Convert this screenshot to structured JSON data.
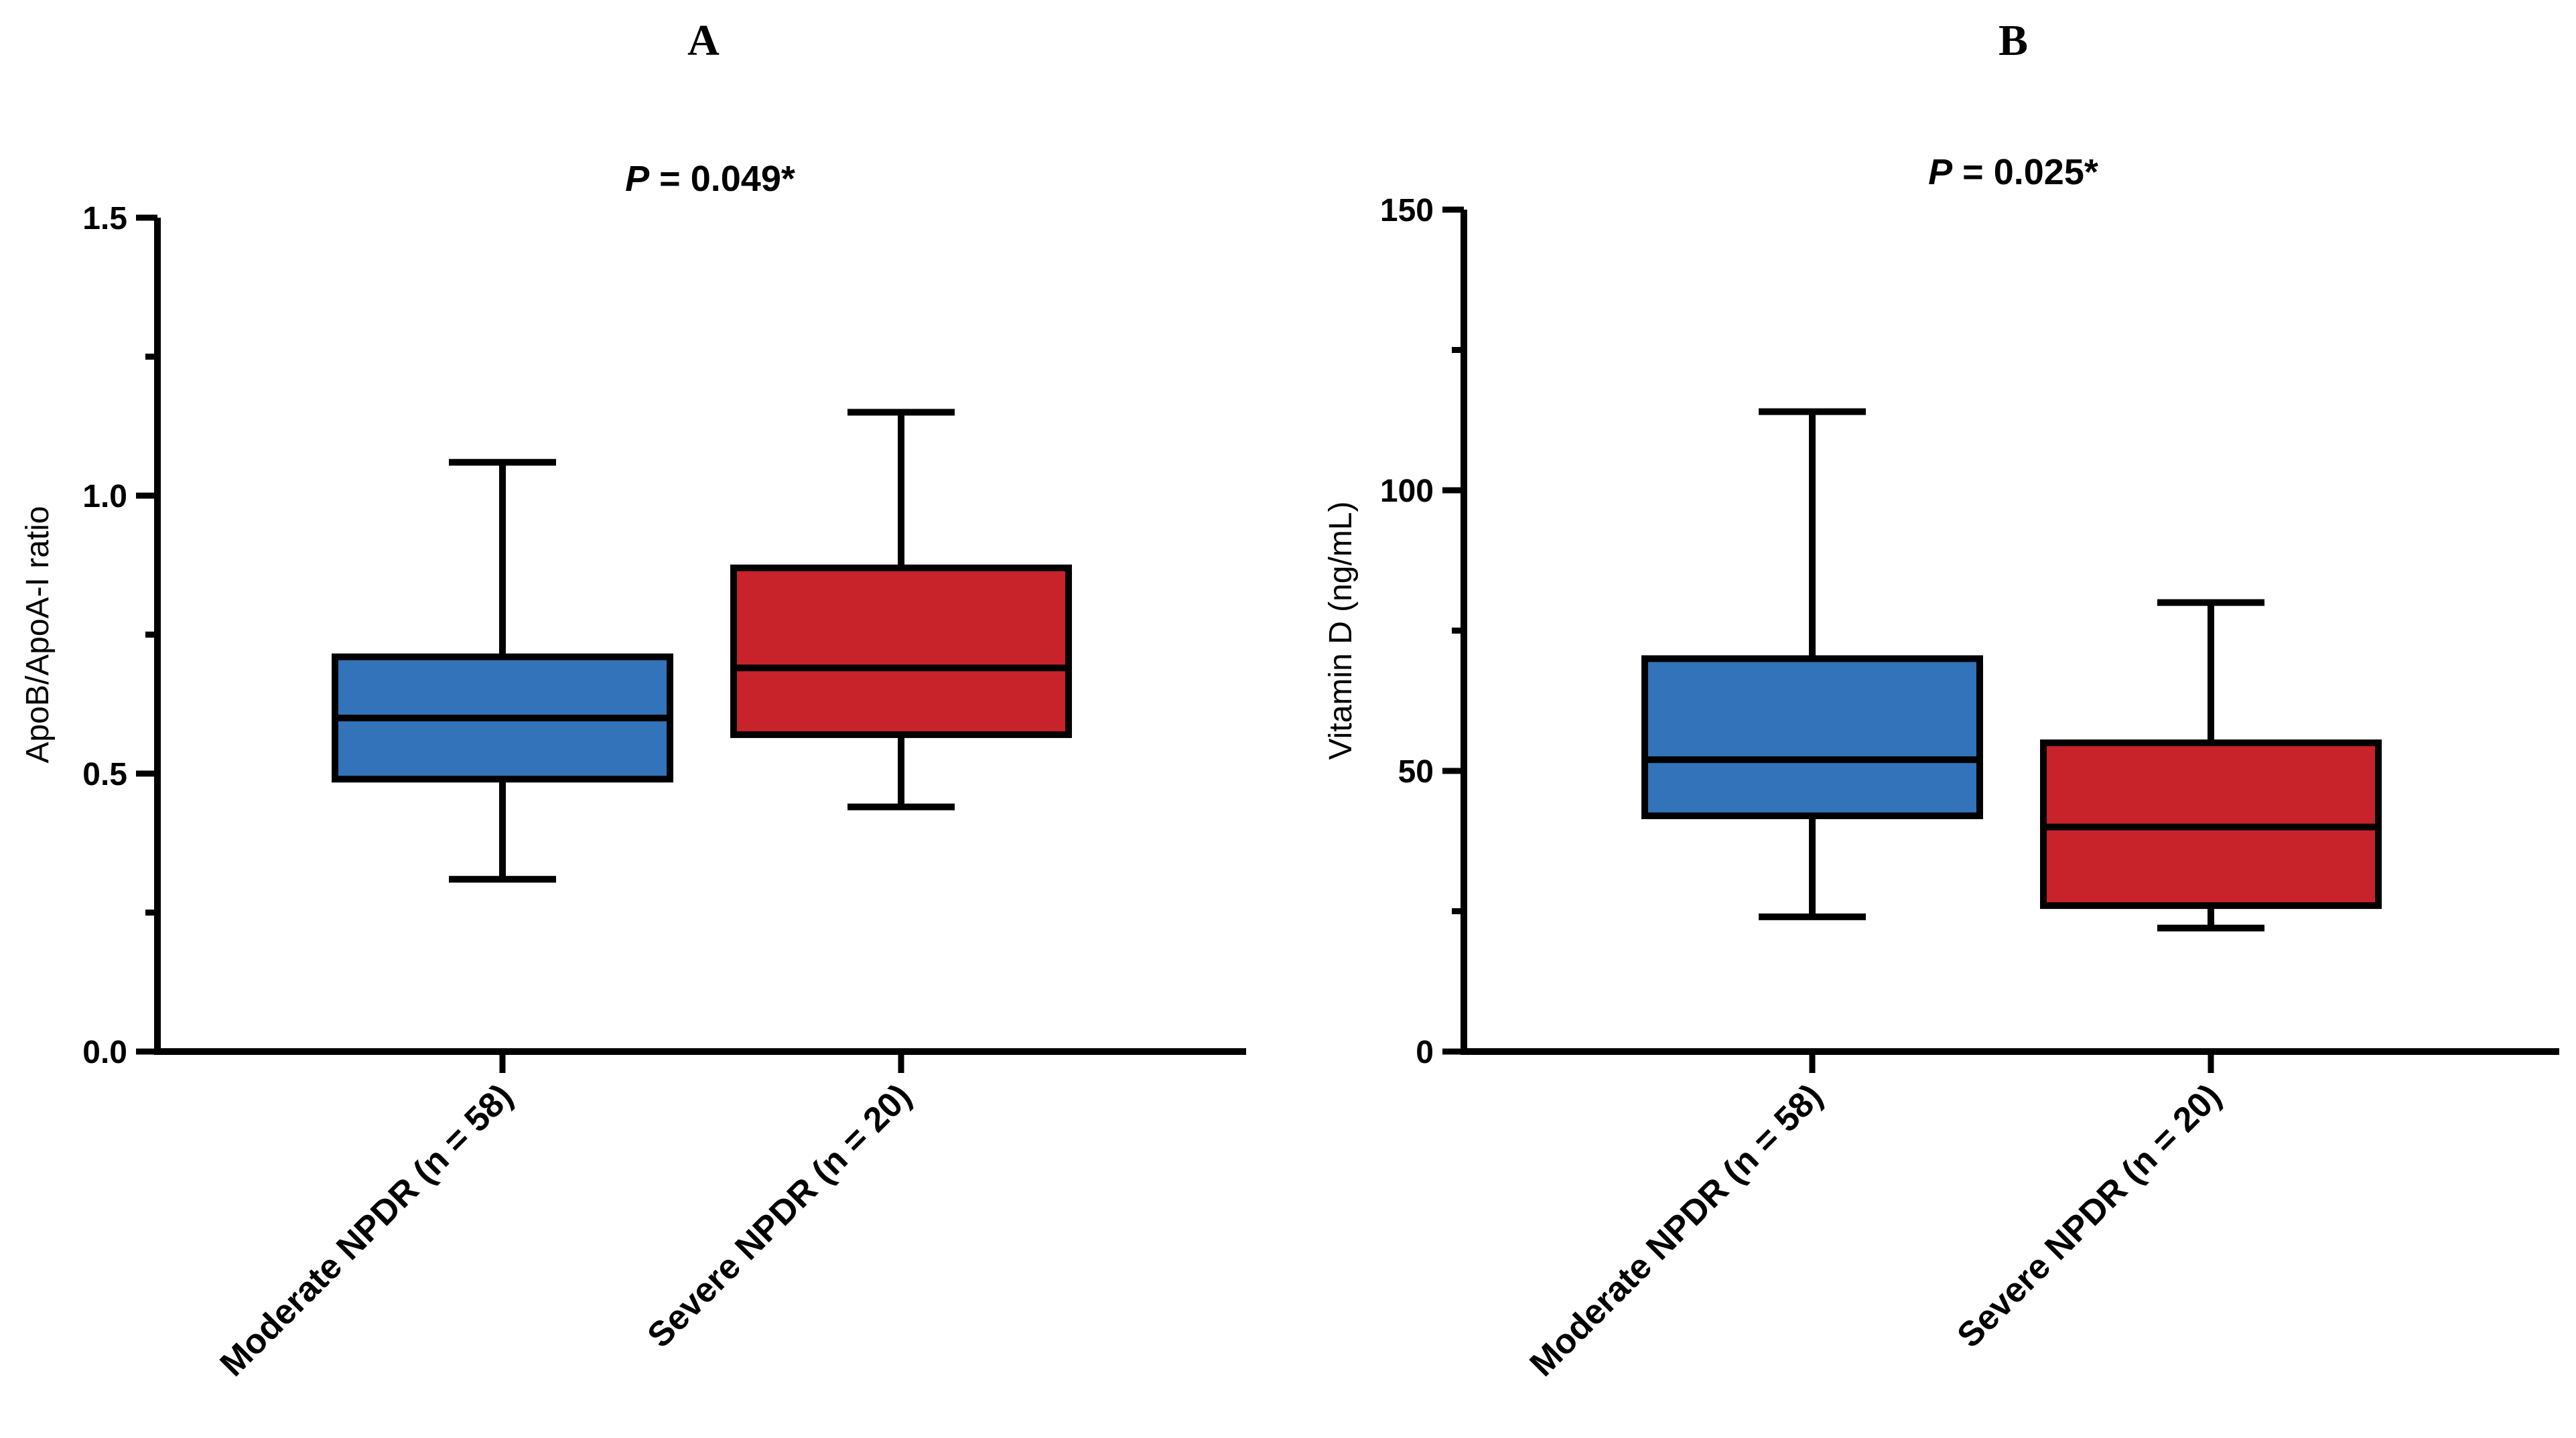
{
  "chart_data": [
    {
      "type": "boxplot",
      "panel": "A",
      "title": "P = 0.049*",
      "title_p": "P",
      "title_rest": " = 0.049*",
      "ylabel": "ApoB/ApoA-I ratio",
      "xlabel": "",
      "ylim": [
        0,
        1.5
      ],
      "yticks": [
        0.0,
        0.5,
        1.0,
        1.5
      ],
      "ytick_labels": [
        "0.0",
        "0.5",
        "1.0",
        "1.5"
      ],
      "minor_step": 0.25,
      "categories": [
        "Moderate NPDR (n = 58)",
        "Severe NPDR (n = 20)"
      ],
      "boxes": [
        {
          "name": "Moderate NPDR (n = 58)",
          "min": 0.31,
          "q1": 0.49,
          "median": 0.6,
          "q3": 0.71,
          "max": 1.06,
          "color": "#3273B9"
        },
        {
          "name": "Severe NPDR (n = 20)",
          "min": 0.44,
          "q1": 0.57,
          "median": 0.69,
          "q3": 0.87,
          "max": 1.15,
          "color": "#C8232B"
        }
      ]
    },
    {
      "type": "boxplot",
      "panel": "B",
      "title": "P = 0.025*",
      "title_p": "P",
      "title_rest": " = 0.025*",
      "ylabel": "Vitamin D (ng/mL)",
      "xlabel": "",
      "ylim": [
        0,
        150
      ],
      "yticks": [
        0,
        50,
        100,
        150
      ],
      "ytick_labels": [
        "0",
        "50",
        "100",
        "150"
      ],
      "minor_step": 25,
      "categories": [
        "Moderate NPDR (n = 58)",
        "Severe NPDR (n = 20)"
      ],
      "boxes": [
        {
          "name": "Moderate NPDR (n = 58)",
          "min": 24,
          "q1": 42,
          "median": 52,
          "q3": 70,
          "max": 114,
          "color": "#3273B9"
        },
        {
          "name": "Severe NPDR (n = 20)",
          "min": 22,
          "q1": 26,
          "median": 40,
          "q3": 55,
          "max": 80,
          "color": "#C8232B"
        }
      ]
    }
  ]
}
